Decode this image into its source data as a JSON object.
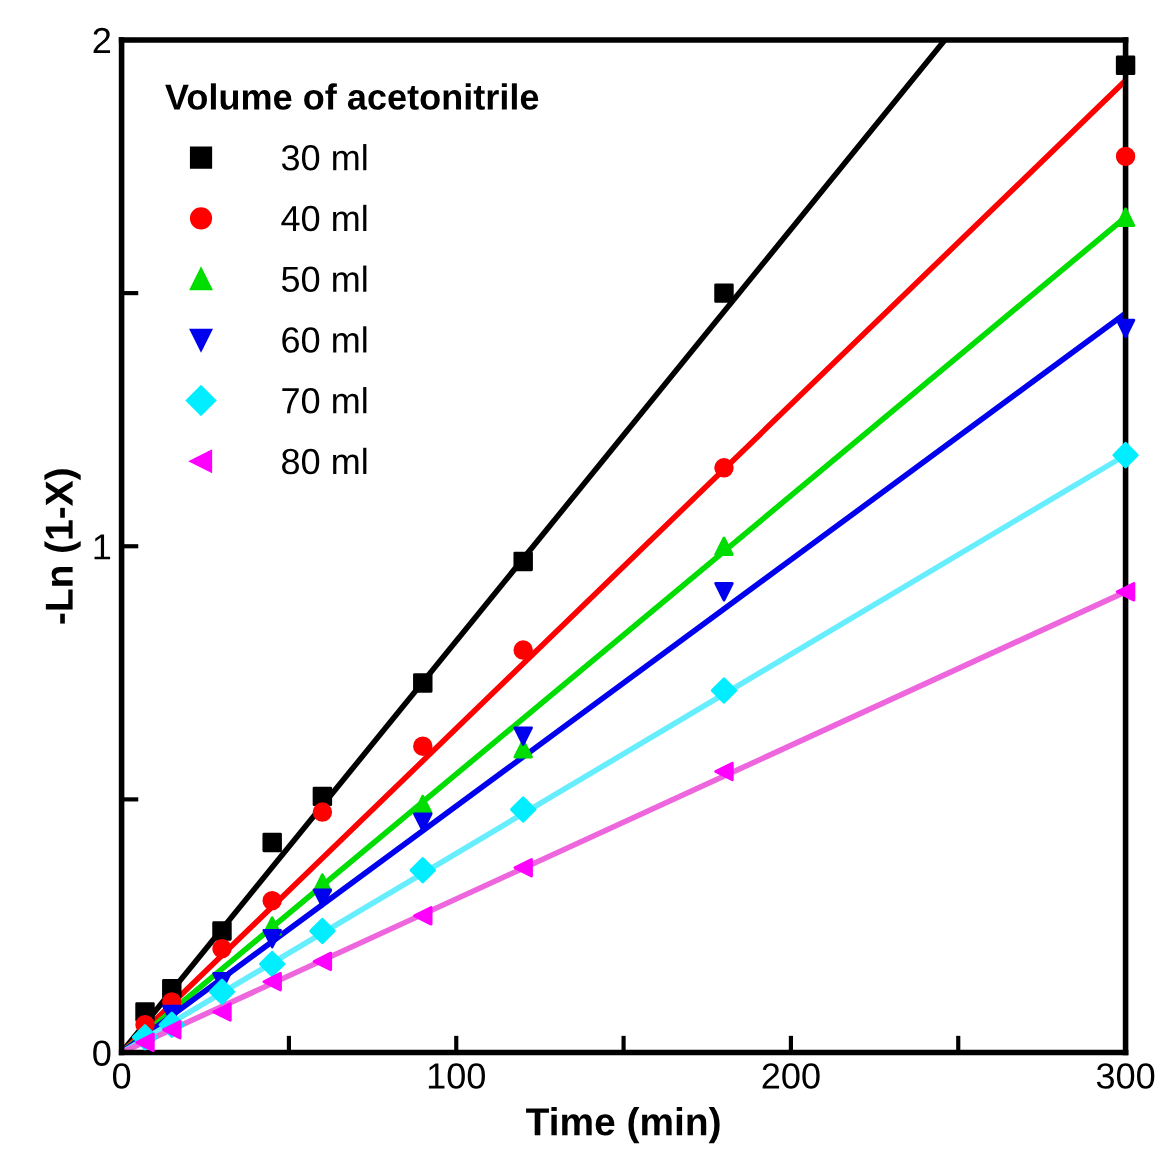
{
  "chart_data": {
    "type": "scatter",
    "xlabel": "Time (min)",
    "ylabel": "-Ln (1-X)",
    "legend_title": "Volume of acetonitrile",
    "legend": "top left",
    "grid": false,
    "x": [
      7,
      15,
      30,
      45,
      60,
      90,
      120,
      180,
      300
    ],
    "xlim": [
      0,
      300
    ],
    "xticks": [
      0,
      {
        "value": 50,
        "label": null
      },
      100,
      {
        "value": 150,
        "label": null
      },
      200,
      {
        "value": 250,
        "label": null
      },
      300
    ],
    "ylim": [
      0,
      2
    ],
    "yticks": [
      0,
      {
        "value": 0.5,
        "label": null
      },
      1,
      {
        "value": 1.5,
        "label": null
      },
      2
    ],
    "series": [
      {
        "name": "30 ml",
        "color": "#000000",
        "marker": "square",
        "values": [
          0.08,
          0.126,
          0.24,
          0.415,
          0.506,
          0.73,
          0.97,
          1.5,
          1.95
        ]
      },
      {
        "name": "40 ml",
        "color": "#ff0000",
        "marker": "circle",
        "values": [
          0.055,
          0.1,
          0.205,
          0.3,
          0.475,
          0.605,
          0.795,
          1.155,
          1.77
        ]
      },
      {
        "name": "50 ml",
        "color": "#00dd00",
        "marker": "triangle",
        "values": [
          null,
          null,
          null,
          0.25,
          0.335,
          0.49,
          0.6,
          1.0,
          1.65
        ]
      },
      {
        "name": "60 ml",
        "color": "#0000ee",
        "marker": "triangle_down",
        "values": [
          null,
          0.075,
          0.14,
          0.225,
          0.305,
          0.455,
          0.625,
          0.91,
          1.43
        ]
      },
      {
        "name": "70 ml",
        "color": "#00eeff",
        "marker": "diamond",
        "values": [
          0.03,
          0.055,
          0.12,
          0.175,
          0.24,
          0.36,
          0.48,
          0.715,
          1.18
        ]
      },
      {
        "name": "80 ml",
        "color": "#ff00ff",
        "marker": "triangle_left",
        "values": [
          0.02,
          0.045,
          0.08,
          0.14,
          0.18,
          0.27,
          0.365,
          0.555,
          0.91
        ]
      },
      {
        "type": "line",
        "color": "#000000",
        "x": [
          0,
          246
        ],
        "values": [
          0,
          2
        ]
      },
      {
        "type": "line",
        "color": "#ff0000",
        "x": [
          0,
          300
        ],
        "values": [
          0,
          1.92
        ]
      },
      {
        "type": "line",
        "color": "#00dd00",
        "x": [
          0,
          300
        ],
        "values": [
          0,
          1.65
        ]
      },
      {
        "type": "line",
        "color": "#0000ee",
        "x": [
          0,
          300
        ],
        "values": [
          0,
          1.46
        ]
      },
      {
        "type": "line",
        "color": "#66eeff",
        "x": [
          0,
          300
        ],
        "values": [
          0,
          1.18
        ]
      },
      {
        "type": "line",
        "color": "#ee66dd",
        "x": [
          0,
          300
        ],
        "values": [
          0,
          0.91
        ]
      }
    ]
  }
}
